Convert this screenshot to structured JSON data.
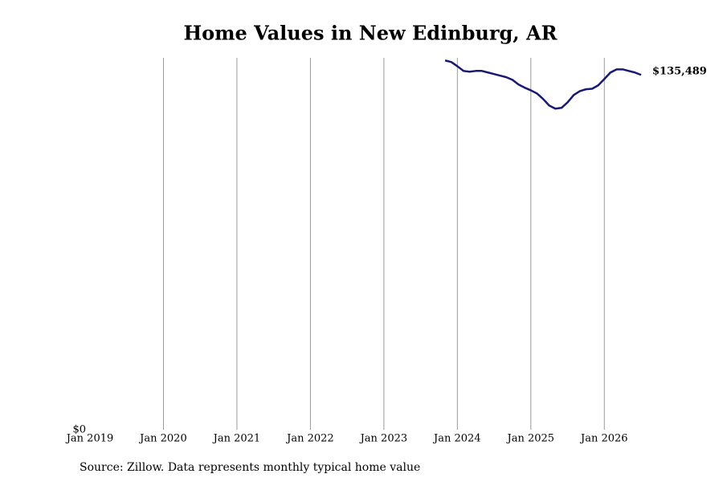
{
  "chart_data": {
    "type": "line",
    "title": "Home Values in New Edinburg, AR",
    "source": "Source: Zillow. Data represents monthly typical home value",
    "x": [
      "2023-11",
      "2023-12",
      "2024-01",
      "2024-02",
      "2024-03",
      "2024-04",
      "2024-05",
      "2024-06",
      "2024-07",
      "2024-08",
      "2024-09",
      "2024-10",
      "2024-11",
      "2024-12",
      "2025-01",
      "2025-02",
      "2025-03",
      "2025-04",
      "2025-05",
      "2025-06",
      "2025-07",
      "2025-08",
      "2025-09",
      "2025-10",
      "2025-11",
      "2025-12",
      "2026-01",
      "2026-02",
      "2026-03",
      "2026-04",
      "2026-05",
      "2026-06",
      "2026-07"
    ],
    "series": [
      {
        "color": "#191970",
        "values": [
          141000,
          140400,
          138800,
          137000,
          136700,
          137000,
          137000,
          136400,
          135800,
          135200,
          134600,
          133600,
          131800,
          130600,
          129600,
          128400,
          126300,
          123800,
          122600,
          122900,
          125000,
          127800,
          129300,
          130000,
          130200,
          131500,
          133900,
          136400,
          137600,
          137600,
          137000,
          136400,
          135489
        ],
        "value_labels": [
          null,
          null,
          null,
          null,
          null,
          null,
          null,
          null,
          null,
          null,
          null,
          null,
          null,
          null,
          null,
          null,
          null,
          null,
          null,
          null,
          null,
          null,
          null,
          null,
          null,
          null,
          null,
          null,
          null,
          null,
          null,
          null,
          "$135,489"
        ]
      }
    ],
    "xlim": [
      "2019-01",
      "2026-07"
    ],
    "xticks": [
      {
        "value": "2019-01",
        "label": "Jan 2019"
      },
      {
        "value": "2020-01",
        "label": "Jan 2020"
      },
      {
        "value": "2021-01",
        "label": "Jan 2021"
      },
      {
        "value": "2022-01",
        "label": "Jan 2022"
      },
      {
        "value": "2023-01",
        "label": "Jan 2023"
      },
      {
        "value": "2024-01",
        "label": "Jan 2024"
      },
      {
        "value": "2025-01",
        "label": "Jan 2025"
      },
      {
        "value": "2026-01",
        "label": "Jan 2026"
      }
    ],
    "ylim": [
      0,
      142000
    ],
    "yticks": [
      {
        "value": 0,
        "label": "$0"
      }
    ],
    "grid": true
  }
}
